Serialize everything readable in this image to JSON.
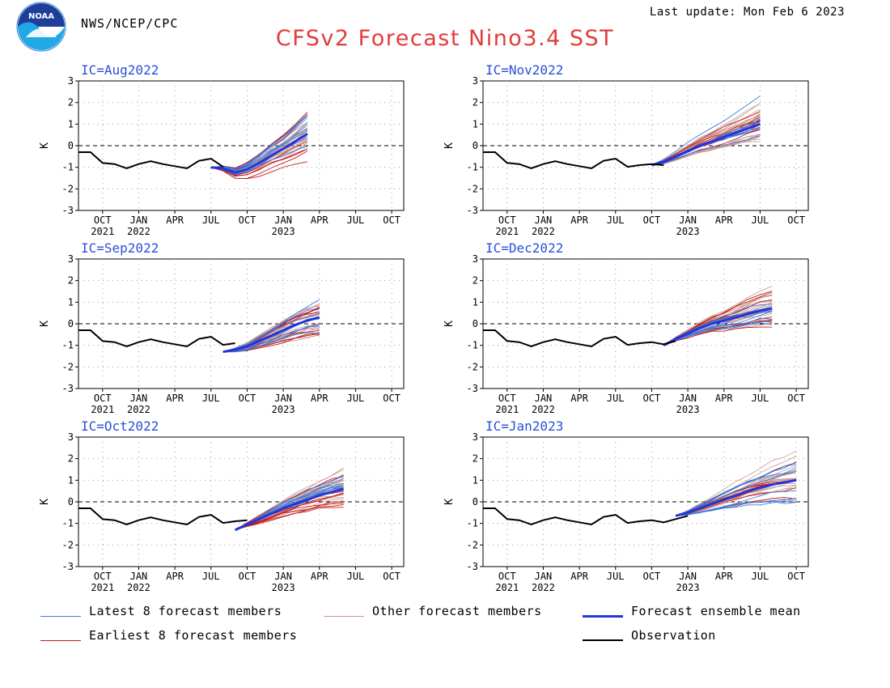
{
  "header": {
    "logo_text": "NOAA",
    "org": "NWS/NCEP/CPC",
    "last_update": "Last update: Mon Feb 6 2023",
    "title": "CFSv2 Forecast Nino3.4 SST"
  },
  "colors": {
    "title": "#e23c3c",
    "ic_label": "#2b4fd8",
    "latest": "#3a7be0",
    "earliest": "#c21a1a",
    "other": "#c8968c",
    "mean": "#2335d8",
    "observation": "#000000"
  },
  "legend": {
    "latest": "Latest 8 forecast members",
    "other": "Other forecast members",
    "mean": "Forecast ensemble mean",
    "earliest": "Earliest 8 forecast members",
    "observation": "Observation"
  },
  "chart_data": [
    {
      "type": "line",
      "ic_label": "IC=Aug2022",
      "ylabel": "K",
      "ylim": [
        -3,
        3
      ],
      "yticks": [
        "3",
        "2",
        "1",
        "0",
        "-1",
        "-2",
        "-3"
      ],
      "xticks": [
        {
          "m": "OCT",
          "y": "2021"
        },
        {
          "m": "JAN",
          "y": "2022"
        },
        {
          "m": "APR",
          "y": ""
        },
        {
          "m": "JUL",
          "y": ""
        },
        {
          "m": "OCT",
          "y": ""
        },
        {
          "m": "JAN",
          "y": "2023"
        },
        {
          "m": "APR",
          "y": ""
        },
        {
          "m": "JUL",
          "y": ""
        },
        {
          "m": "OCT",
          "y": ""
        }
      ],
      "grid": true,
      "observation": [
        -0.3,
        -0.3,
        -0.8,
        -0.85,
        -1.05,
        -0.85,
        -0.72,
        -0.85,
        -0.95,
        -1.05,
        -0.7,
        -0.6,
        -0.98
      ],
      "ensemble_mean": [
        -1.0,
        -1.05,
        -1.25,
        -1.1,
        -0.8,
        -0.45,
        -0.15,
        0.2,
        0.55
      ],
      "mean_start": 12,
      "member_spread": {
        "earliest": 1.6,
        "latest": 2.0,
        "other": 1.3
      }
    },
    {
      "type": "line",
      "ic_label": "IC=Nov2022",
      "ylabel": "K",
      "ylim": [
        -3,
        3
      ],
      "yticks": [
        "3",
        "2",
        "1",
        "0",
        "-1",
        "-2",
        "-3"
      ],
      "xticks": [
        {
          "m": "OCT",
          "y": "2021"
        },
        {
          "m": "JAN",
          "y": "2022"
        },
        {
          "m": "APR",
          "y": ""
        },
        {
          "m": "JUL",
          "y": ""
        },
        {
          "m": "OCT",
          "y": ""
        },
        {
          "m": "JAN",
          "y": "2023"
        },
        {
          "m": "APR",
          "y": ""
        },
        {
          "m": "JUL",
          "y": ""
        },
        {
          "m": "OCT",
          "y": ""
        }
      ],
      "grid": true,
      "observation": [
        -0.3,
        -0.3,
        -0.8,
        -0.85,
        -1.05,
        -0.85,
        -0.72,
        -0.85,
        -0.95,
        -1.05,
        -0.7,
        -0.6,
        -0.98,
        -0.9,
        -0.85,
        -0.9
      ],
      "ensemble_mean": [
        -0.9,
        -0.75,
        -0.5,
        -0.25,
        0.0,
        0.2,
        0.4,
        0.6,
        0.8,
        1.0
      ],
      "mean_start": 15,
      "member_spread": {
        "earliest": 1.1,
        "latest": 2.4,
        "other": 1.6
      }
    },
    {
      "type": "line",
      "ic_label": "IC=Sep2022",
      "ylabel": "K",
      "ylim": [
        -3,
        3
      ],
      "yticks": [
        "3",
        "2",
        "1",
        "0",
        "-1",
        "-2",
        "-3"
      ],
      "xticks": [
        {
          "m": "OCT",
          "y": "2021"
        },
        {
          "m": "JAN",
          "y": "2022"
        },
        {
          "m": "APR",
          "y": ""
        },
        {
          "m": "JUL",
          "y": ""
        },
        {
          "m": "OCT",
          "y": ""
        },
        {
          "m": "JAN",
          "y": "2023"
        },
        {
          "m": "APR",
          "y": ""
        },
        {
          "m": "JUL",
          "y": ""
        },
        {
          "m": "OCT",
          "y": ""
        }
      ],
      "grid": true,
      "observation": [
        -0.3,
        -0.3,
        -0.8,
        -0.85,
        -1.05,
        -0.85,
        -0.72,
        -0.85,
        -0.95,
        -1.05,
        -0.7,
        -0.6,
        -0.98,
        -0.9
      ],
      "ensemble_mean": [
        -1.3,
        -1.2,
        -1.05,
        -0.8,
        -0.55,
        -0.3,
        -0.05,
        0.15,
        0.3
      ],
      "mean_start": 13,
      "member_spread": {
        "earliest": 1.4,
        "latest": 1.6,
        "other": 1.2
      }
    },
    {
      "type": "line",
      "ic_label": "IC=Dec2022",
      "ylabel": "K",
      "ylim": [
        -3,
        3
      ],
      "yticks": [
        "3",
        "2",
        "1",
        "0",
        "-1",
        "-2",
        "-3"
      ],
      "xticks": [
        {
          "m": "OCT",
          "y": "2021"
        },
        {
          "m": "JAN",
          "y": "2022"
        },
        {
          "m": "APR",
          "y": ""
        },
        {
          "m": "JUL",
          "y": ""
        },
        {
          "m": "OCT",
          "y": ""
        },
        {
          "m": "JAN",
          "y": "2023"
        },
        {
          "m": "APR",
          "y": ""
        },
        {
          "m": "JUL",
          "y": ""
        },
        {
          "m": "OCT",
          "y": ""
        }
      ],
      "grid": true,
      "observation": [
        -0.3,
        -0.3,
        -0.8,
        -0.85,
        -1.05,
        -0.85,
        -0.72,
        -0.85,
        -0.95,
        -1.05,
        -0.7,
        -0.6,
        -0.98,
        -0.9,
        -0.85,
        -0.95,
        -0.8
      ],
      "ensemble_mean": [
        -1.0,
        -0.7,
        -0.45,
        -0.2,
        0.0,
        0.15,
        0.3,
        0.45,
        0.6,
        0.7
      ],
      "mean_start": 16,
      "member_spread": {
        "earliest": 1.8,
        "latest": 1.3,
        "other": 1.7
      }
    },
    {
      "type": "line",
      "ic_label": "IC=Oct2022",
      "ylabel": "K",
      "ylim": [
        -3,
        3
      ],
      "yticks": [
        "3",
        "2",
        "1",
        "0",
        "-1",
        "-2",
        "-3"
      ],
      "xticks": [
        {
          "m": "OCT",
          "y": "2021"
        },
        {
          "m": "JAN",
          "y": "2022"
        },
        {
          "m": "APR",
          "y": ""
        },
        {
          "m": "JUL",
          "y": ""
        },
        {
          "m": "OCT",
          "y": ""
        },
        {
          "m": "JAN",
          "y": "2023"
        },
        {
          "m": "APR",
          "y": ""
        },
        {
          "m": "JUL",
          "y": ""
        },
        {
          "m": "OCT",
          "y": ""
        }
      ],
      "grid": true,
      "observation": [
        -0.3,
        -0.3,
        -0.8,
        -0.85,
        -1.05,
        -0.85,
        -0.72,
        -0.85,
        -0.95,
        -1.05,
        -0.7,
        -0.6,
        -0.98,
        -0.9,
        -0.85
      ],
      "ensemble_mean": [
        -1.3,
        -1.05,
        -0.8,
        -0.55,
        -0.3,
        -0.1,
        0.1,
        0.3,
        0.45,
        0.6
      ],
      "mean_start": 14,
      "member_spread": {
        "earliest": 1.7,
        "latest": 1.0,
        "other": 1.5
      }
    },
    {
      "type": "line",
      "ic_label": "IC=Jan2023",
      "ylabel": "K",
      "ylim": [
        -3,
        3
      ],
      "yticks": [
        "3",
        "2",
        "1",
        "0",
        "-1",
        "-2",
        "-3"
      ],
      "xticks": [
        {
          "m": "OCT",
          "y": "2021"
        },
        {
          "m": "JAN",
          "y": "2022"
        },
        {
          "m": "APR",
          "y": ""
        },
        {
          "m": "JUL",
          "y": ""
        },
        {
          "m": "OCT",
          "y": ""
        },
        {
          "m": "JAN",
          "y": "2023"
        },
        {
          "m": "APR",
          "y": ""
        },
        {
          "m": "JUL",
          "y": ""
        },
        {
          "m": "OCT",
          "y": ""
        }
      ],
      "grid": true,
      "observation": [
        -0.3,
        -0.3,
        -0.8,
        -0.85,
        -1.05,
        -0.85,
        -0.72,
        -0.85,
        -0.95,
        -1.05,
        -0.7,
        -0.6,
        -0.98,
        -0.9,
        -0.85,
        -0.95,
        -0.8,
        -0.65
      ],
      "ensemble_mean": [
        -0.65,
        -0.5,
        -0.3,
        -0.1,
        0.1,
        0.3,
        0.5,
        0.65,
        0.8,
        0.9,
        1.0
      ],
      "mean_start": 17,
      "member_spread": {
        "earliest": 1.5,
        "latest": 2.2,
        "other": 2.0
      }
    }
  ]
}
